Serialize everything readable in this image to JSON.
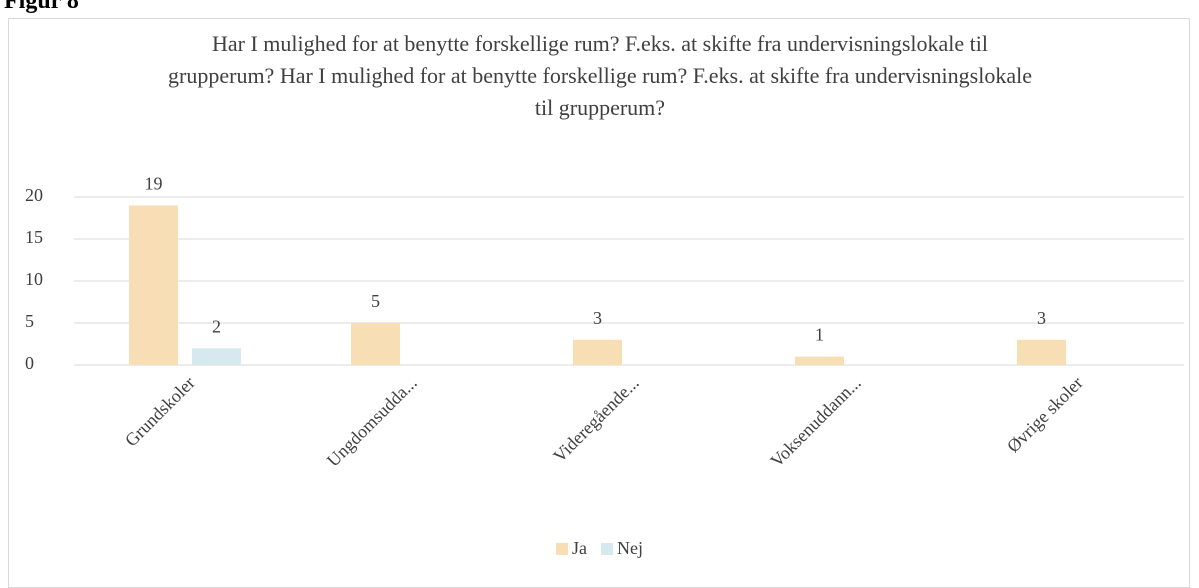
{
  "heading": "Figur 8",
  "chart_data": {
    "type": "bar",
    "title": "Har I mulighed for at benytte forskellige rum? F.eks. at skifte fra undervisningslokale til grupperum? Har I mulighed for at benytte forskellige rum? F.eks. at skifte fra undervisningslokale til grupperum?",
    "categories": [
      "Grundskoler",
      "Ungdomsudda...",
      "Videregående...",
      "Voksenuddann...",
      "Øvrige skoler"
    ],
    "series": [
      {
        "name": "Ja",
        "color": "#f8deb5",
        "values": [
          19,
          5,
          3,
          1,
          3
        ]
      },
      {
        "name": "Nej",
        "color": "#d6e9ef",
        "values": [
          2,
          null,
          null,
          null,
          null
        ]
      }
    ],
    "ylim": [
      0,
      20
    ],
    "yticks": [
      0,
      5,
      10,
      15,
      20
    ],
    "grid": true,
    "legend": "bottom"
  }
}
